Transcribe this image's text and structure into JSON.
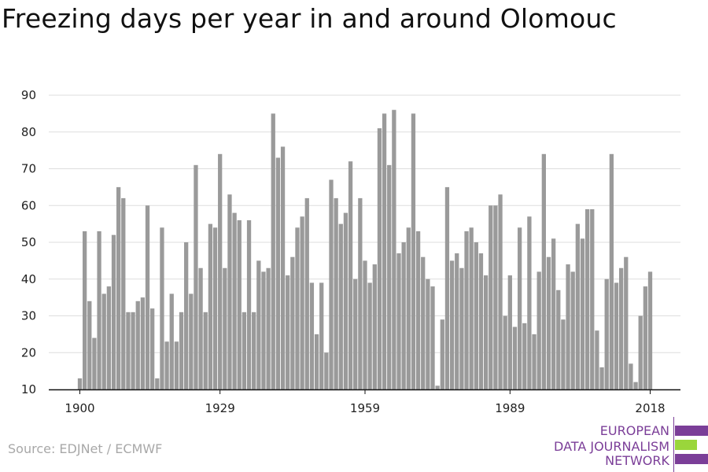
{
  "title": "Freezing days per year in and around Olomouc",
  "source": "Source: EDJNet / ECMWF",
  "logo": {
    "lines": [
      "EUROPEAN",
      "DATA JOURNALISM",
      "NETWORK"
    ],
    "colors": {
      "purple": "#7b3e98",
      "green": "#9ad63b"
    }
  },
  "colors": {
    "bar": "#9a9a9a",
    "grid": "#dddddd",
    "axis": "#111111",
    "text": "#222222"
  },
  "chart_data": {
    "type": "bar",
    "title": "Freezing days per year in and around Olomouc",
    "xlabel": "",
    "ylabel": "",
    "ylim": [
      10,
      90
    ],
    "xlim": [
      1900,
      2018
    ],
    "y_ticks": [
      10,
      20,
      30,
      40,
      50,
      60,
      70,
      80,
      90
    ],
    "x_ticks": [
      1900,
      1929,
      1959,
      1989,
      2018
    ],
    "grid": true,
    "x": [
      1900,
      1901,
      1902,
      1903,
      1904,
      1905,
      1906,
      1907,
      1908,
      1909,
      1910,
      1911,
      1912,
      1913,
      1914,
      1915,
      1916,
      1917,
      1918,
      1919,
      1920,
      1921,
      1922,
      1923,
      1924,
      1925,
      1926,
      1927,
      1928,
      1929,
      1930,
      1931,
      1932,
      1933,
      1934,
      1935,
      1936,
      1937,
      1938,
      1939,
      1940,
      1941,
      1942,
      1943,
      1944,
      1945,
      1946,
      1947,
      1948,
      1949,
      1950,
      1951,
      1952,
      1953,
      1954,
      1955,
      1956,
      1957,
      1958,
      1959,
      1960,
      1961,
      1962,
      1963,
      1964,
      1965,
      1966,
      1967,
      1968,
      1969,
      1970,
      1971,
      1972,
      1973,
      1974,
      1975,
      1976,
      1977,
      1978,
      1979,
      1980,
      1981,
      1982,
      1983,
      1984,
      1985,
      1986,
      1987,
      1988,
      1989,
      1990,
      1991,
      1992,
      1993,
      1994,
      1995,
      1996,
      1997,
      1998,
      1999,
      2000,
      2001,
      2002,
      2003,
      2004,
      2005,
      2006,
      2007,
      2008,
      2009,
      2010,
      2011,
      2012,
      2013,
      2014,
      2015,
      2016,
      2017,
      2018
    ],
    "values": [
      13,
      53,
      34,
      24,
      53,
      36,
      38,
      52,
      65,
      62,
      31,
      31,
      34,
      35,
      60,
      32,
      13,
      54,
      23,
      36,
      23,
      31,
      50,
      36,
      71,
      43,
      31,
      55,
      54,
      74,
      43,
      63,
      58,
      56,
      31,
      56,
      31,
      45,
      42,
      43,
      85,
      73,
      76,
      41,
      46,
      54,
      57,
      62,
      39,
      25,
      39,
      20,
      67,
      62,
      55,
      58,
      72,
      40,
      62,
      45,
      39,
      44,
      81,
      85,
      71,
      86,
      47,
      50,
      54,
      85,
      53,
      46,
      40,
      38,
      11,
      29,
      65,
      45,
      47,
      43,
      53,
      54,
      50,
      47,
      41,
      60,
      60,
      63,
      30,
      41,
      27,
      54,
      28,
      57,
      25,
      42,
      74,
      46,
      51,
      37,
      29,
      44,
      42,
      55,
      51,
      59,
      59,
      26,
      16,
      40,
      74,
      39,
      43,
      46,
      17,
      12,
      30,
      38,
      42
    ]
  }
}
